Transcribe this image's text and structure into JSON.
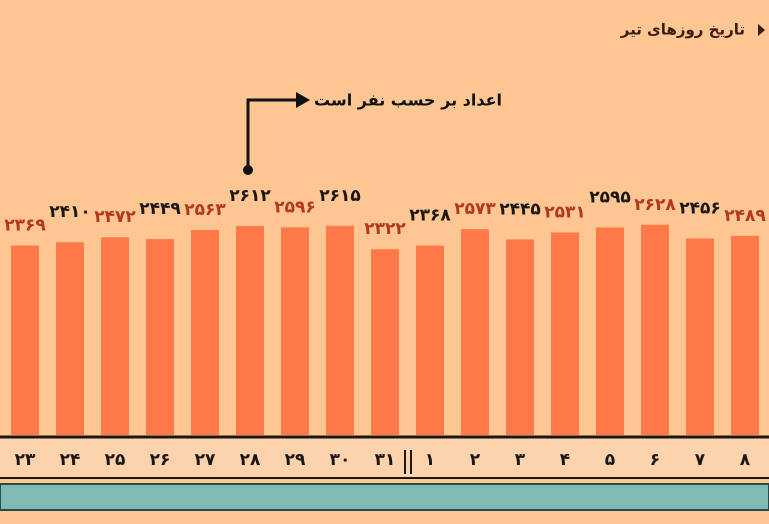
{
  "chart_data": {
    "type": "bar",
    "title": "تاریخ روزهای تیر",
    "annotation": "اعداد بر حسب نفر است",
    "categories": [
      "۲۳",
      "۲۴",
      "۲۵",
      "۲۶",
      "۲۷",
      "۲۸",
      "۲۹",
      "۳۰",
      "۳۱",
      "۱",
      "۲",
      "۳",
      "۴",
      "۵",
      "۶",
      "۷",
      "۸"
    ],
    "values": [
      2369,
      2410,
      2472,
      2449,
      2563,
      2612,
      2596,
      2615,
      2322,
      2368,
      2573,
      2445,
      2531,
      2595,
      2628,
      2456,
      2489
    ],
    "value_labels": [
      "۲۳۶۹",
      "۲۴۱۰",
      "۲۴۷۲",
      "۲۴۴۹",
      "۲۵۶۳",
      "۲۶۱۲",
      "۲۵۹۶",
      "۲۶۱۵",
      "۲۳۲۲",
      "۲۳۶۸",
      "۲۵۷۳",
      "۲۴۴۵",
      "۲۵۳۱",
      "۲۵۹۵",
      "۲۶۲۸",
      "۲۴۵۶",
      "۲۴۸۹"
    ],
    "color": "#ff7a48",
    "value_label_colors": [
      "#b3391d",
      "#1c1715"
    ],
    "ylim": [
      0,
      5000
    ]
  }
}
